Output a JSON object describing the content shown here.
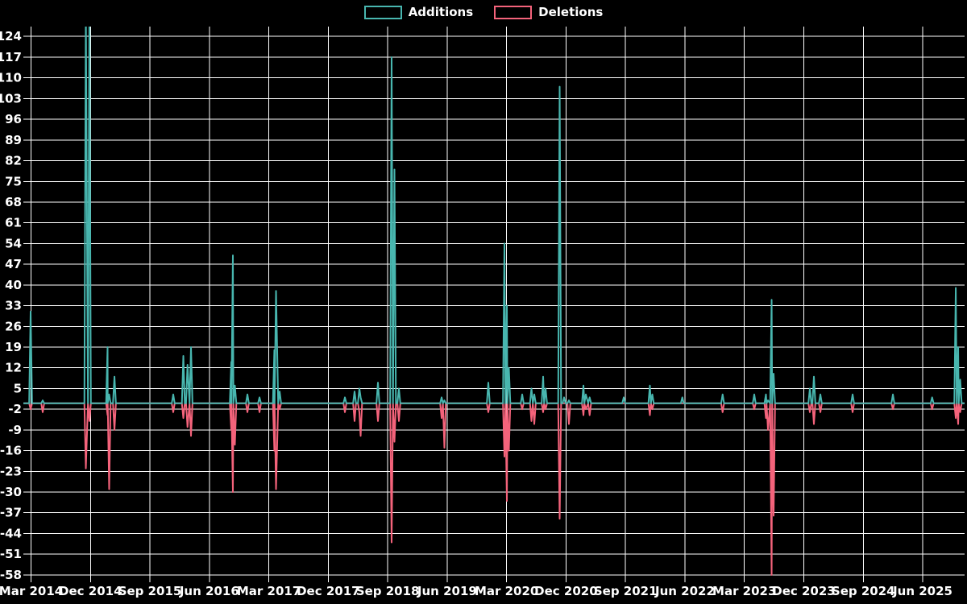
{
  "legend": {
    "items": [
      {
        "label": "Additions",
        "color": "#48b6af"
      },
      {
        "label": "Deletions",
        "color": "#f4637b"
      }
    ]
  },
  "chart_data": {
    "type": "line",
    "title": "",
    "xlabel": "",
    "ylabel": "",
    "background_color": "#000000",
    "grid": true,
    "grid_color": "#ffffff",
    "legend_position": "top-center",
    "baseline": 0,
    "y_axis": {
      "ticks": [
        124,
        117,
        110,
        103,
        96,
        89,
        82,
        75,
        68,
        61,
        54,
        47,
        40,
        33,
        26,
        19,
        12,
        5,
        -2,
        -9,
        -16,
        -23,
        -30,
        -37,
        -44,
        -51,
        -58
      ],
      "min": -58,
      "max": 127,
      "note_top_clip": "tallest Nov-Dec 2014 spike is clipped at plot top (> 124)"
    },
    "x_axis": {
      "tick_labels": [
        "Mar 2014",
        "Dec 2014",
        "Sep 2015",
        "Jun 2016",
        "Mar 2017",
        "Dec 2017",
        "Sep 2018",
        "Jun 2019",
        "Mar 2020",
        "Dec 2020",
        "Sep 2021",
        "Jun 2022",
        "Mar 2023",
        "Dec 2023",
        "Sep 2024",
        "Jun 2025"
      ],
      "tick_interval_months": 9,
      "origin_month": "2014-03"
    },
    "series": [
      {
        "name": "Additions",
        "color": "#48b6af",
        "points": [
          {
            "m": -0.06,
            "date": "2014-03",
            "value": 31
          },
          {
            "m": 1.77,
            "date": "2014-05",
            "value": 1
          },
          {
            "m": 8.3,
            "date": "2014-11",
            "value": 134
          },
          {
            "m": 8.84,
            "date": "2014-12",
            "value": 131
          },
          {
            "m": 11.59,
            "date": "2015-02",
            "value": 19
          },
          {
            "m": 11.83,
            "date": "2015-03",
            "value": 3
          },
          {
            "m": 12.63,
            "date": "2015-04",
            "value": 9
          },
          {
            "m": 21.53,
            "date": "2015-12",
            "value": 3
          },
          {
            "m": 23.06,
            "date": "2016-02",
            "value": 16
          },
          {
            "m": 23.69,
            "date": "2016-03",
            "value": 13
          },
          {
            "m": 24.22,
            "date": "2016-04",
            "value": 19
          },
          {
            "m": 30.32,
            "date": "2016-09",
            "value": 14
          },
          {
            "m": 30.56,
            "date": "2016-09",
            "value": 50
          },
          {
            "m": 30.86,
            "date": "2016-10",
            "value": 6
          },
          {
            "m": 32.76,
            "date": "2016-12",
            "value": 3
          },
          {
            "m": 34.59,
            "date": "2017-01",
            "value": 2
          },
          {
            "m": 36.84,
            "date": "2017-04",
            "value": 18
          },
          {
            "m": 37.09,
            "date": "2017-04",
            "value": 38
          },
          {
            "m": 37.64,
            "date": "2017-05",
            "value": 4
          },
          {
            "m": 47.52,
            "date": "2018-02",
            "value": 2
          },
          {
            "m": 48.98,
            "date": "2018-04",
            "value": 4
          },
          {
            "m": 49.71,
            "date": "2018-05",
            "value": 5
          },
          {
            "m": 49.9,
            "date": "2018-05",
            "value": 2
          },
          {
            "m": 52.52,
            "date": "2018-07",
            "value": 7
          },
          {
            "m": 54.59,
            "date": "2018-09",
            "value": 117
          },
          {
            "m": 55.02,
            "date": "2018-10",
            "value": 79
          },
          {
            "m": 55.69,
            "date": "2018-11",
            "value": 5
          },
          {
            "m": 62.16,
            "date": "2019-05",
            "value": 2
          },
          {
            "m": 62.58,
            "date": "2019-06",
            "value": 1
          },
          {
            "m": 69.23,
            "date": "2019-12",
            "value": 7
          },
          {
            "m": 71.67,
            "date": "2020-03",
            "value": 54
          },
          {
            "m": 72.04,
            "date": "2020-03",
            "value": 33
          },
          {
            "m": 72.34,
            "date": "2020-04",
            "value": 12
          },
          {
            "m": 74.36,
            "date": "2020-05",
            "value": 3
          },
          {
            "m": 75.76,
            "date": "2020-07",
            "value": 5
          },
          {
            "m": 76.19,
            "date": "2020-07",
            "value": 3
          },
          {
            "m": 77.53,
            "date": "2020-08",
            "value": 9
          },
          {
            "m": 77.9,
            "date": "2020-09",
            "value": 5
          },
          {
            "m": 80.03,
            "date": "2020-11",
            "value": 107
          },
          {
            "m": 80.7,
            "date": "2020-12",
            "value": 2
          },
          {
            "m": 81.43,
            "date": "2020-12",
            "value": 1
          },
          {
            "m": 83.63,
            "date": "2021-03",
            "value": 6
          },
          {
            "m": 83.99,
            "date": "2021-03",
            "value": 3
          },
          {
            "m": 84.57,
            "date": "2021-04",
            "value": 2
          },
          {
            "m": 89.73,
            "date": "2021-09",
            "value": 2
          },
          {
            "m": 93.69,
            "date": "2022-01",
            "value": 6
          },
          {
            "m": 94.06,
            "date": "2022-01",
            "value": 3
          },
          {
            "m": 98.6,
            "date": "2022-06",
            "value": 2
          },
          {
            "m": 104.7,
            "date": "2022-12",
            "value": 3
          },
          {
            "m": 109.49,
            "date": "2023-04",
            "value": 3
          },
          {
            "m": 111.26,
            "date": "2023-06",
            "value": 3
          },
          {
            "m": 111.57,
            "date": "2023-06",
            "value": 1
          },
          {
            "m": 112.12,
            "date": "2023-07",
            "value": 35
          },
          {
            "m": 112.42,
            "date": "2023-07",
            "value": 10
          },
          {
            "m": 117.91,
            "date": "2023-12",
            "value": 5
          },
          {
            "m": 118.52,
            "date": "2024-01",
            "value": 9
          },
          {
            "m": 119.5,
            "date": "2024-02",
            "value": 3
          },
          {
            "m": 124.38,
            "date": "2024-07",
            "value": 3
          },
          {
            "m": 130.48,
            "date": "2025-01",
            "value": 3
          },
          {
            "m": 136.42,
            "date": "2025-07",
            "value": 2
          },
          {
            "m": 140.0,
            "date": "2025-11",
            "value": 39
          },
          {
            "m": 140.36,
            "date": "2025-11",
            "value": 19
          },
          {
            "m": 140.67,
            "date": "2025-12",
            "value": 8
          }
        ]
      },
      {
        "name": "Deletions",
        "color": "#f4637b",
        "points": [
          {
            "m": -0.06,
            "date": "2014-03",
            "value": -2
          },
          {
            "m": 1.77,
            "date": "2014-05",
            "value": -3
          },
          {
            "m": 8.3,
            "date": "2014-11",
            "value": -22
          },
          {
            "m": 8.84,
            "date": "2014-12",
            "value": -6
          },
          {
            "m": 11.59,
            "date": "2015-02",
            "value": -4
          },
          {
            "m": 11.83,
            "date": "2015-03",
            "value": -29
          },
          {
            "m": 12.63,
            "date": "2015-04",
            "value": -9
          },
          {
            "m": 21.53,
            "date": "2015-12",
            "value": -3
          },
          {
            "m": 23.06,
            "date": "2016-02",
            "value": -5
          },
          {
            "m": 23.69,
            "date": "2016-03",
            "value": -8
          },
          {
            "m": 24.22,
            "date": "2016-04",
            "value": -11
          },
          {
            "m": 30.32,
            "date": "2016-09",
            "value": -9
          },
          {
            "m": 30.56,
            "date": "2016-09",
            "value": -30
          },
          {
            "m": 30.86,
            "date": "2016-10",
            "value": -14
          },
          {
            "m": 32.76,
            "date": "2016-12",
            "value": -3
          },
          {
            "m": 34.59,
            "date": "2017-01",
            "value": -3
          },
          {
            "m": 36.84,
            "date": "2017-04",
            "value": -16
          },
          {
            "m": 37.09,
            "date": "2017-04",
            "value": -29
          },
          {
            "m": 37.64,
            "date": "2017-05",
            "value": -2
          },
          {
            "m": 47.52,
            "date": "2018-02",
            "value": -3
          },
          {
            "m": 48.98,
            "date": "2018-04",
            "value": -6
          },
          {
            "m": 49.71,
            "date": "2018-05",
            "value": -3
          },
          {
            "m": 49.9,
            "date": "2018-05",
            "value": -11
          },
          {
            "m": 52.52,
            "date": "2018-07",
            "value": -6
          },
          {
            "m": 54.59,
            "date": "2018-09",
            "value": -47
          },
          {
            "m": 55.02,
            "date": "2018-10",
            "value": -13
          },
          {
            "m": 55.69,
            "date": "2018-11",
            "value": -6
          },
          {
            "m": 62.16,
            "date": "2019-05",
            "value": -5
          },
          {
            "m": 62.58,
            "date": "2019-06",
            "value": -15
          },
          {
            "m": 69.23,
            "date": "2019-12",
            "value": -3
          },
          {
            "m": 71.67,
            "date": "2020-03",
            "value": -18
          },
          {
            "m": 72.04,
            "date": "2020-03",
            "value": -33
          },
          {
            "m": 72.34,
            "date": "2020-04",
            "value": -16
          },
          {
            "m": 74.36,
            "date": "2020-05",
            "value": -2
          },
          {
            "m": 75.76,
            "date": "2020-07",
            "value": -6
          },
          {
            "m": 76.19,
            "date": "2020-07",
            "value": -7
          },
          {
            "m": 77.53,
            "date": "2020-08",
            "value": -3
          },
          {
            "m": 77.9,
            "date": "2020-09",
            "value": -2
          },
          {
            "m": 80.03,
            "date": "2020-11",
            "value": -39
          },
          {
            "m": 81.43,
            "date": "2020-12",
            "value": -7
          },
          {
            "m": 83.63,
            "date": "2021-03",
            "value": -4
          },
          {
            "m": 83.99,
            "date": "2021-03",
            "value": -2
          },
          {
            "m": 84.57,
            "date": "2021-04",
            "value": -4
          },
          {
            "m": 93.69,
            "date": "2022-01",
            "value": -4
          },
          {
            "m": 94.06,
            "date": "2022-01",
            "value": -2
          },
          {
            "m": 104.7,
            "date": "2022-12",
            "value": -3
          },
          {
            "m": 109.49,
            "date": "2023-04",
            "value": -2
          },
          {
            "m": 111.26,
            "date": "2023-06",
            "value": -5
          },
          {
            "m": 111.57,
            "date": "2023-06",
            "value": -9
          },
          {
            "m": 112.12,
            "date": "2023-07",
            "value": -58
          },
          {
            "m": 112.42,
            "date": "2023-07",
            "value": -38
          },
          {
            "m": 117.91,
            "date": "2023-12",
            "value": -3
          },
          {
            "m": 118.52,
            "date": "2024-01",
            "value": -7
          },
          {
            "m": 119.5,
            "date": "2024-02",
            "value": -3
          },
          {
            "m": 124.38,
            "date": "2024-07",
            "value": -3
          },
          {
            "m": 130.48,
            "date": "2025-01",
            "value": -2
          },
          {
            "m": 136.42,
            "date": "2025-07",
            "value": -2
          },
          {
            "m": 140.0,
            "date": "2025-11",
            "value": -5
          },
          {
            "m": 140.36,
            "date": "2025-11",
            "value": -7
          },
          {
            "m": 140.67,
            "date": "2025-12",
            "value": -3
          }
        ]
      }
    ]
  }
}
